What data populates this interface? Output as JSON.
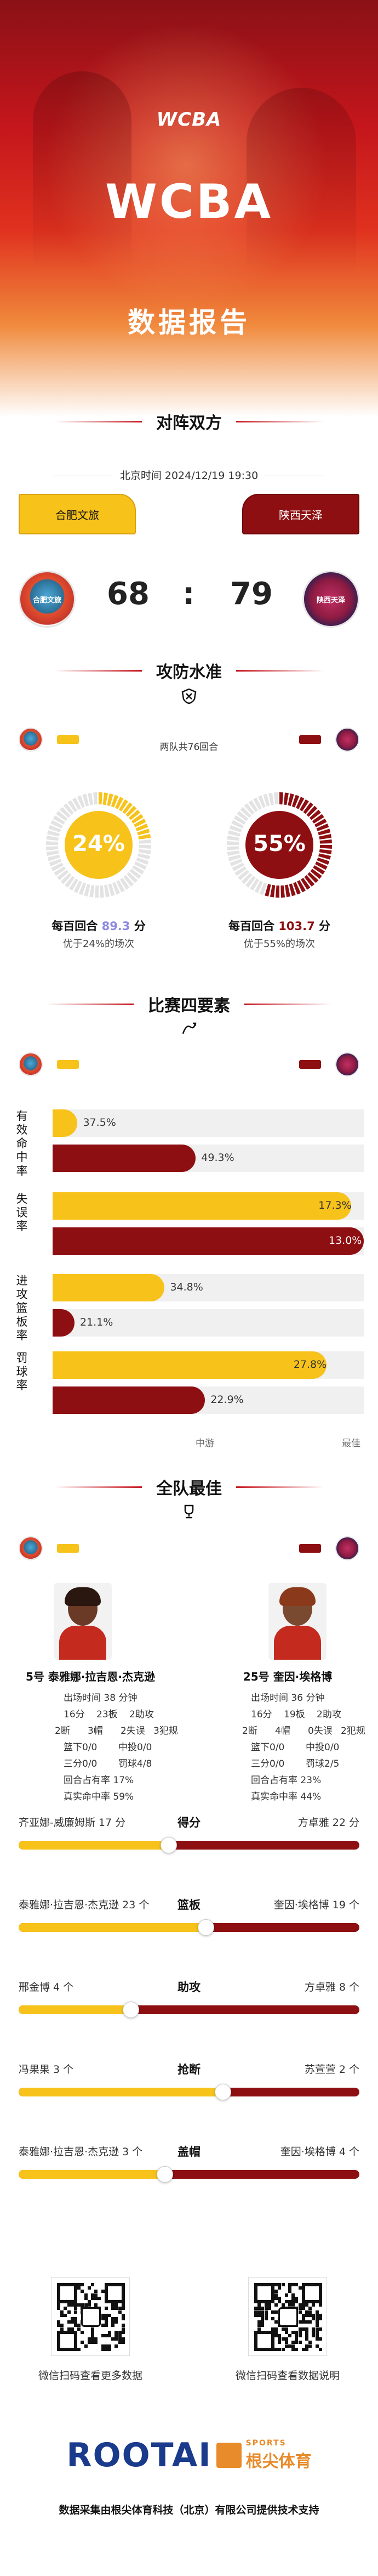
{
  "hero": {
    "logo": "WCBA",
    "title": "WCBA",
    "subtitle": "数据报告"
  },
  "matchup": {
    "section_title": "对阵双方",
    "datetime": "北京时间 2024/12/19 19:30",
    "home": {
      "name": "合肥文旅",
      "logo_text": "合肥文旅",
      "score": "68"
    },
    "away": {
      "name": "陕西天泽",
      "logo_text": "陕西天泽",
      "score": "79"
    },
    "separator": ":"
  },
  "offense_defense": {
    "section_title": "攻防水准",
    "rounds_text": "两队共76回合",
    "home": {
      "pct": "24%",
      "per_label": "每百回合",
      "per_value": "89.3",
      "per_unit": "分",
      "better": "优于24%的场次",
      "fraction": 0.24
    },
    "away": {
      "pct": "55%",
      "per_label": "每百回合",
      "per_value": "103.7",
      "per_unit": "分",
      "better": "优于55%的场次",
      "fraction": 0.55
    }
  },
  "four_factors": {
    "section_title": "比赛四要素",
    "axis_mid": "中游",
    "axis_best": "最佳",
    "items": [
      {
        "label": "有效命中率",
        "home": "37.5%",
        "away": "49.3%",
        "home_frac": 0.08,
        "away_frac": 0.46
      },
      {
        "label": "失误率",
        "home": "17.3%",
        "away": "13.0%",
        "home_frac": 0.96,
        "away_frac": 1.0
      },
      {
        "label": "进攻篮板率",
        "home": "34.8%",
        "away": "21.1%",
        "home_frac": 0.36,
        "away_frac": 0.07
      },
      {
        "label": "罚球率",
        "home": "27.8%",
        "away": "22.9%",
        "home_frac": 0.88,
        "away_frac": 0.49
      }
    ]
  },
  "best": {
    "section_title": "全队最佳",
    "home_player": {
      "name": "5号 泰雅娜·拉吉恩·杰克逊",
      "stats": [
        "出场时间 38 分钟",
        "16分",
        "23板",
        "2助攻",
        "2断",
        "3帽",
        "2失误",
        "3犯规",
        "篮下0/0",
        "中投0/0",
        "三分0/0",
        "罚球4/8",
        "回合占有率 17%",
        "真实命中率 59%"
      ]
    },
    "away_player": {
      "name": "25号 奎因·埃格博",
      "stats": [
        "出场时间 36 分钟",
        "16分",
        "19板",
        "2助攻",
        "2断",
        "4帽",
        "0失误",
        "2犯规",
        "篮下0/0",
        "中投0/0",
        "三分0/0",
        "罚球2/5",
        "回合占有率 23%",
        "真实命中率 44%"
      ]
    },
    "comparisons": [
      {
        "stat": "得分",
        "home": "齐亚娜-威廉姆斯 17 分",
        "away": "方卓雅 22 分",
        "home_frac": 0.44
      },
      {
        "stat": "篮板",
        "home": "泰雅娜·拉吉恩·杰克逊 23 个",
        "away": "奎因·埃格博 19 个",
        "home_frac": 0.55
      },
      {
        "stat": "助攻",
        "home": "邢金博 4 个",
        "away": "方卓雅 8 个",
        "home_frac": 0.33
      },
      {
        "stat": "抢断",
        "home": "冯果果 3 个",
        "away": "苏萱萱 2 个",
        "home_frac": 0.6
      },
      {
        "stat": "盖帽",
        "home": "泰雅娜·拉吉恩·杰克逊 3 个",
        "away": "奎因·埃格博 4 个",
        "home_frac": 0.43
      }
    ]
  },
  "footer": {
    "qr_left_caption": "微信扫码查看更多数据",
    "qr_right_caption": "微信扫码查看数据说明",
    "brand": "ROOTAI",
    "brand_sports": "SPORTS",
    "brand_cn": "根尖体育",
    "credit": "数据采集由根尖体育科技（北京）有限公司提供技术支持"
  },
  "colors": {
    "home": "#f7c21a",
    "away": "#8e0f12",
    "accent": "#c61820"
  }
}
